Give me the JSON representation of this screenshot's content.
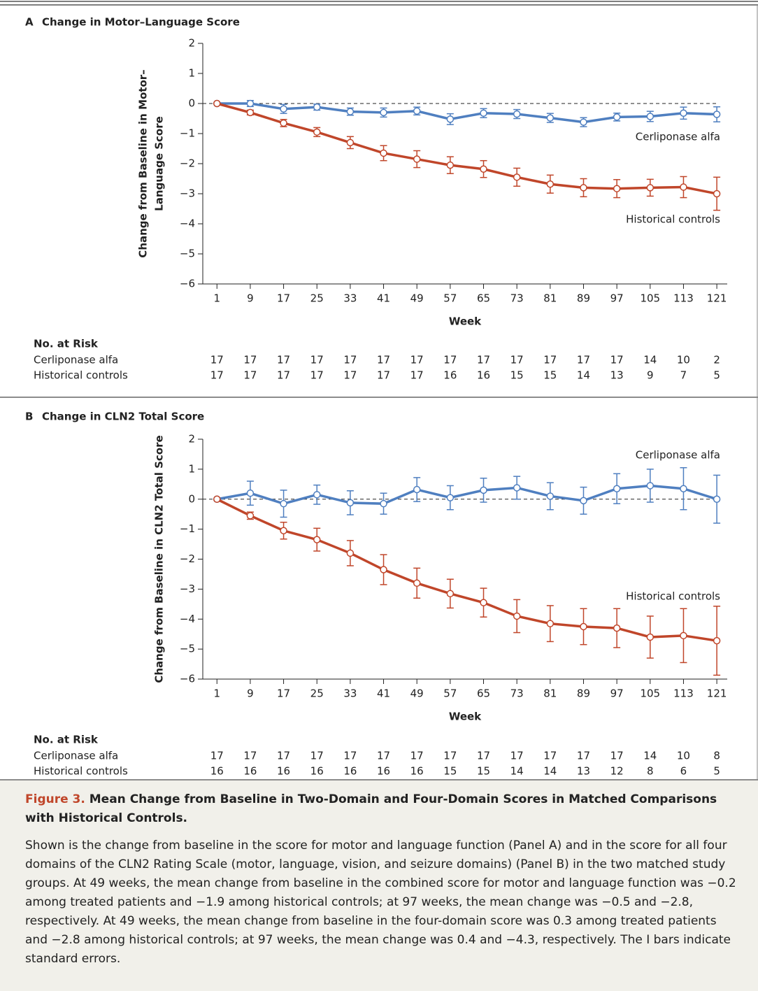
{
  "chart_data": [
    {
      "type": "line",
      "panel": "A",
      "title": "Change in Motor–Language Score",
      "y_label_lines": [
        "Change from Baseline in Motor–",
        "Language Score"
      ],
      "x_label": "Week",
      "x": [
        1,
        9,
        17,
        25,
        33,
        41,
        49,
        57,
        65,
        73,
        81,
        89,
        97,
        105,
        113,
        121
      ],
      "xlim": [
        -2.4,
        123.5
      ],
      "xticks": [
        1,
        9,
        17,
        25,
        33,
        41,
        49,
        57,
        65,
        73,
        81,
        89,
        97,
        105,
        113,
        121
      ],
      "ylim": [
        -6,
        2
      ],
      "yticks": [
        {
          "value": -6,
          "label": "−6"
        },
        {
          "value": -5,
          "label": "−5"
        },
        {
          "value": -4,
          "label": "−4"
        },
        {
          "value": -3,
          "label": "−3"
        },
        {
          "value": -2,
          "label": "−2"
        },
        {
          "value": -1,
          "label": "−1"
        },
        0,
        1,
        2
      ],
      "series": [
        {
          "name": "Cerliponase alfa",
          "color": "#4f7fc0",
          "values": [
            0,
            0,
            -0.18,
            -0.12,
            -0.27,
            -0.3,
            -0.25,
            -0.52,
            -0.32,
            -0.35,
            -0.48,
            -0.62,
            -0.45,
            -0.43,
            -0.32,
            -0.36
          ],
          "errors": [
            0,
            0.1,
            0.15,
            0.1,
            0.12,
            0.15,
            0.13,
            0.18,
            0.15,
            0.15,
            0.15,
            0.15,
            0.13,
            0.17,
            0.2,
            0.25
          ]
        },
        {
          "name": "Historical controls",
          "color": "#c0462a",
          "values": [
            0,
            -0.3,
            -0.65,
            -0.95,
            -1.3,
            -1.65,
            -1.85,
            -2.05,
            -2.18,
            -2.45,
            -2.68,
            -2.8,
            -2.83,
            -2.8,
            -2.78,
            -3.0
          ],
          "errors": [
            0,
            0.08,
            0.12,
            0.15,
            0.2,
            0.25,
            0.28,
            0.28,
            0.28,
            0.3,
            0.3,
            0.3,
            0.3,
            0.28,
            0.35,
            0.55
          ]
        }
      ],
      "risk_table": {
        "title": "No. at Risk",
        "rows": [
          {
            "name": "Cerliponase alfa",
            "values": [
              17,
              17,
              17,
              17,
              17,
              17,
              17,
              17,
              17,
              17,
              17,
              17,
              17,
              14,
              10,
              2
            ]
          },
          {
            "name": "Historical controls",
            "values": [
              17,
              17,
              17,
              17,
              17,
              17,
              17,
              16,
              16,
              15,
              15,
              14,
              13,
              9,
              7,
              5
            ]
          }
        ]
      }
    },
    {
      "type": "line",
      "panel": "B",
      "title": "Change in CLN2 Total Score",
      "y_label_lines": [
        "Change from Baseline in CLN2 Total Score"
      ],
      "x_label": "Week",
      "x": [
        1,
        9,
        17,
        25,
        33,
        41,
        49,
        57,
        65,
        73,
        81,
        89,
        97,
        105,
        113,
        121
      ],
      "xlim": [
        -2.4,
        123.5
      ],
      "xticks": [
        1,
        9,
        17,
        25,
        33,
        41,
        49,
        57,
        65,
        73,
        81,
        89,
        97,
        105,
        113,
        121
      ],
      "ylim": [
        -6,
        2
      ],
      "yticks": [
        {
          "value": -6,
          "label": "−6"
        },
        {
          "value": -5,
          "label": "−5"
        },
        {
          "value": -4,
          "label": "−4"
        },
        {
          "value": -3,
          "label": "−3"
        },
        {
          "value": -2,
          "label": "−2"
        },
        {
          "value": -1,
          "label": "−1"
        },
        0,
        1,
        2
      ],
      "series": [
        {
          "name": "Cerliponase alfa",
          "color": "#4f7fc0",
          "values": [
            0,
            0.2,
            -0.15,
            0.15,
            -0.12,
            -0.15,
            0.32,
            0.05,
            0.3,
            0.38,
            0.1,
            -0.05,
            0.35,
            0.45,
            0.35,
            0
          ],
          "errors": [
            0,
            0.4,
            0.45,
            0.32,
            0.4,
            0.35,
            0.4,
            0.4,
            0.4,
            0.38,
            0.45,
            0.45,
            0.5,
            0.55,
            0.7,
            0.8
          ]
        },
        {
          "name": "Historical controls",
          "color": "#c0462a",
          "values": [
            0,
            -0.55,
            -1.05,
            -1.35,
            -1.8,
            -2.35,
            -2.8,
            -3.15,
            -3.45,
            -3.9,
            -4.15,
            -4.25,
            -4.3,
            -4.6,
            -4.55,
            -4.72
          ],
          "errors": [
            0,
            0.12,
            0.28,
            0.38,
            0.42,
            0.5,
            0.5,
            0.48,
            0.48,
            0.55,
            0.6,
            0.6,
            0.65,
            0.7,
            0.9,
            1.15
          ]
        }
      ],
      "risk_table": {
        "title": "No. at Risk",
        "rows": [
          {
            "name": "Cerliponase alfa",
            "values": [
              17,
              17,
              17,
              17,
              17,
              17,
              17,
              17,
              17,
              17,
              17,
              17,
              17,
              14,
              10,
              8
            ]
          },
          {
            "name": "Historical controls",
            "values": [
              16,
              16,
              16,
              16,
              16,
              16,
              16,
              15,
              15,
              14,
              14,
              13,
              12,
              8,
              6,
              5
            ]
          }
        ]
      }
    }
  ],
  "caption": {
    "figure_label": "Figure 3.",
    "title": "Mean Change from Baseline in Two-Domain and Four-Domain Scores in Matched Comparisons with Historical Controls.",
    "body": "Shown is the change from baseline in the score for motor and language function (Panel A) and in the score for all four domains of the CLN2 Rating Scale (motor, language, vision, and seizure domains) (Panel B) in the two matched study groups. At 49 weeks, the mean change from baseline in the combined score for motor and language function was −0.2 among treated patients and −1.9 among historical controls; at 97 weeks, the mean change was −0.5 and −2.8, respectively. At 49 weeks, the mean change from baseline in the four-domain score was 0.3 among treated patients and −2.8 among historical controls; at 97 weeks, the mean change was 0.4 and −4.3, respectively. The I bars indicate standard errors."
  }
}
